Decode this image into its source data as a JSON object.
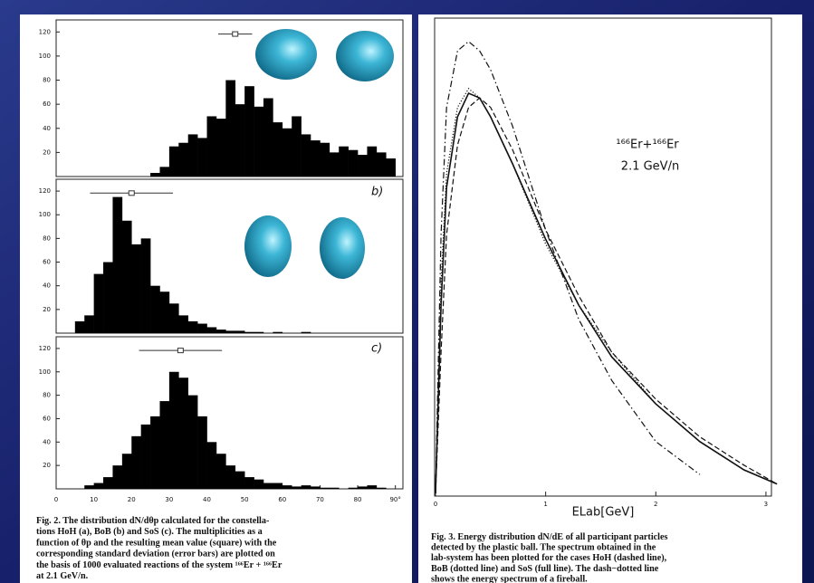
{
  "chart_data": [
    {
      "type": "histogram",
      "bins": [
        0,
        2.5,
        5,
        7.5,
        10,
        12.5,
        15,
        17.5,
        20,
        22.5,
        25,
        27.5,
        30,
        32.5,
        35,
        37.5,
        40,
        42.5,
        45,
        47.5,
        50,
        52.5,
        55,
        57.5,
        60,
        62.5,
        65,
        67.5,
        70,
        72.5,
        75,
        77.5,
        80,
        82.5,
        85,
        87.5,
        90
      ],
      "values": [
        0,
        0,
        0,
        0,
        0,
        0,
        0,
        0,
        0,
        0,
        3,
        8,
        25,
        28,
        35,
        32,
        50,
        48,
        80,
        60,
        75,
        58,
        65,
        45,
        40,
        50,
        35,
        30,
        28,
        20,
        25,
        22,
        18,
        25,
        20,
        15
      ],
      "color": "#000000",
      "xlim": [
        0,
        92
      ],
      "ylim": [
        0,
        130
      ],
      "yticks": [
        20,
        40,
        60,
        80,
        100,
        120
      ],
      "mean": 47.5,
      "std": 4.5
    },
    {
      "type": "histogram",
      "bins": [
        0,
        2.5,
        5,
        7.5,
        10,
        12.5,
        15,
        17.5,
        20,
        22.5,
        25,
        27.5,
        30,
        32.5,
        35,
        37.5,
        40,
        42.5,
        45,
        47.5,
        50,
        52.5,
        55,
        57.5,
        60,
        62.5,
        65,
        67.5,
        70,
        72.5,
        75,
        77.5,
        80,
        82.5,
        85,
        87.5,
        90
      ],
      "values": [
        0,
        0,
        10,
        15,
        50,
        60,
        115,
        95,
        75,
        80,
        40,
        35,
        25,
        15,
        10,
        8,
        5,
        3,
        2,
        2,
        1,
        1,
        0,
        1,
        0,
        0,
        1,
        0,
        0,
        0,
        0,
        0,
        0,
        0,
        0,
        0
      ],
      "color": "#000000",
      "xlim": [
        0,
        92
      ],
      "ylim": [
        0,
        130
      ],
      "yticks": [
        20,
        40,
        60,
        80,
        100,
        120
      ],
      "mean": 20,
      "std": 11,
      "annotation": "b)"
    },
    {
      "type": "histogram",
      "bins": [
        0,
        2.5,
        5,
        7.5,
        10,
        12.5,
        15,
        17.5,
        20,
        22.5,
        25,
        27.5,
        30,
        32.5,
        35,
        37.5,
        40,
        42.5,
        45,
        47.5,
        50,
        52.5,
        55,
        57.5,
        60,
        62.5,
        65,
        67.5,
        70,
        72.5,
        75,
        77.5,
        80,
        82.5,
        85,
        87.5,
        90
      ],
      "values": [
        0,
        0,
        0,
        3,
        5,
        10,
        20,
        30,
        45,
        55,
        62,
        75,
        100,
        95,
        80,
        62,
        40,
        30,
        20,
        15,
        10,
        8,
        5,
        5,
        3,
        2,
        3,
        2,
        1,
        1,
        0,
        1,
        2,
        3,
        1,
        0
      ],
      "color": "#000000",
      "xlim": [
        0,
        92
      ],
      "ylim": [
        0,
        130
      ],
      "yticks": [
        20,
        40,
        60,
        80,
        100,
        120
      ],
      "mean": 33,
      "std": 11,
      "annotation": "c)",
      "xticks": [
        0,
        10,
        20,
        30,
        40,
        50,
        60,
        70,
        80,
        {
          "value": 90,
          "label": "90°"
        }
      ],
      "caption": [
        "Fig. 2.  The distribution dN/dθp calculated for the constella-",
        "tions HoH (a), BoB (b) and SoS (c). The multiplicities as a",
        "function of θp and the resulting mean value (square) with the",
        "corresponding standard deviation (error bars) are plotted on",
        "the basis of 1000 evaluated reactions of the system ¹⁶⁶Er + ¹⁶⁶Er",
        "at 2.1 GeV/n."
      ]
    },
    {
      "type": "line",
      "x": [
        0,
        0.05,
        0.1,
        0.2,
        0.3,
        0.4,
        0.5,
        0.7,
        1.0,
        1.3,
        1.6,
        2.0,
        2.4,
        2.8,
        3.1
      ],
      "series": [
        {
          "color": "#111111",
          "dash": "solid",
          "values": [
            0,
            40,
            65,
            80,
            85,
            84,
            80,
            70,
            54,
            40,
            29,
            19,
            11,
            5,
            2
          ]
        },
        {
          "color": "#111111",
          "dash": "dashed",
          "values": [
            0,
            30,
            55,
            74,
            82,
            84,
            82,
            73,
            56,
            42,
            30,
            20,
            12,
            6,
            2
          ]
        },
        {
          "color": "#111111",
          "dash": "dotted",
          "values": [
            0,
            45,
            68,
            82,
            86,
            84,
            80,
            70,
            53,
            40,
            30,
            19,
            11,
            5,
            2
          ]
        },
        {
          "color": "#111111",
          "dash": "dashdot",
          "values": [
            0,
            55,
            82,
            94,
            96,
            94,
            90,
            78,
            56,
            37,
            24,
            11,
            4,
            null,
            null
          ]
        }
      ],
      "xlim": [
        0,
        3.05
      ],
      "ylim": [
        0,
        100
      ],
      "xticks": [
        0,
        1,
        2,
        3
      ],
      "x_label": "ELab[GeV]",
      "annotations": [
        "¹⁶⁶Er+¹⁶⁶Er",
        "2.1 GeV/n"
      ],
      "caption": [
        "Fig. 3.  Energy distribution dN/dE of all participant particles",
        "detected by the plastic ball. The spectrum obtained in the",
        "lab-system has been plotted for the cases HoH (dashed line),",
        "BoB (dotted line) and SoS (full line). The dash−dotted line",
        "shows the energy spectrum of a fireball."
      ]
    }
  ]
}
